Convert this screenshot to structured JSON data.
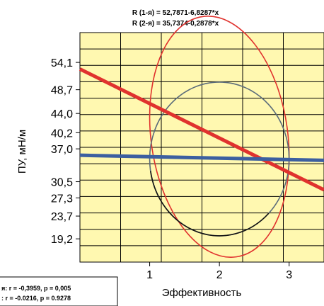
{
  "chart_data": {
    "type": "scatter",
    "title_lines": [
      "R (1-я) = 52,7871-6,8287*x",
      "R (2-я) = 35,7374-0,2878*x"
    ],
    "xlabel": "Эффективность",
    "ylabel": "ПУ, мН/м",
    "xlim": [
      0.0,
      3.5
    ],
    "ylim": [
      14.6,
      60.0
    ],
    "x_ticks": [
      1,
      2,
      3
    ],
    "x_tick_labels": [
      "1",
      "2",
      "3"
    ],
    "y_ticks": [
      54.1,
      48.7,
      44.0,
      40.2,
      37.0,
      30.5,
      27.3,
      23.7,
      19.2
    ],
    "y_tick_labels": [
      "54,1",
      "48,7",
      "44,0",
      "40,2",
      "37,0",
      "30,5",
      "27,3",
      "23,7",
      "19,2"
    ],
    "grid": true,
    "background": "#fff8b0",
    "series": [
      {
        "name": "1-я",
        "color": "#e0322e",
        "regression": {
          "intercept": 52.7871,
          "slope": -6.8287,
          "x": [
            0.0,
            3.5
          ]
        },
        "ellipse": {
          "center": [
            2.0,
            39.4
          ],
          "angle": -8,
          "semi_major": 24.0,
          "semi_minor": 0.98
        },
        "stats": "r = -0,3959, p = 0,005"
      },
      {
        "name": "2-я",
        "color": "#3c5fa0",
        "regression": {
          "intercept": 35.7374,
          "slope": -0.2878,
          "x": [
            0.0,
            3.5
          ]
        },
        "ellipse": {
          "center": [
            2.0,
            35.0
          ],
          "angle": 0,
          "semi_major": 1.0,
          "semi_minor": 15.2
        },
        "stats": "r = -0.0216, p = 0.9278"
      }
    ],
    "stats_box": {
      "lines": [
        "я: r = -0,3959, p = 0,005",
        ": r = -0.0216, p = 0.9278"
      ]
    }
  }
}
